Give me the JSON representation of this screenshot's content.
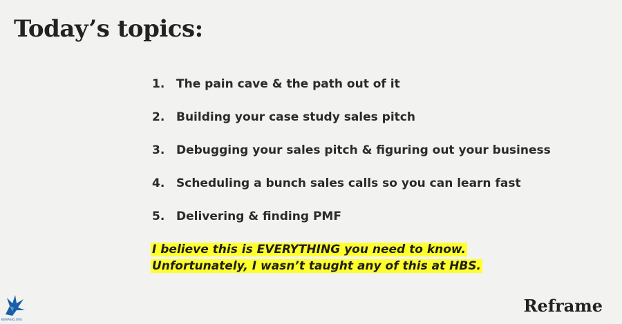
{
  "slide": {
    "title": "Today’s topics:",
    "topics": [
      {
        "number": "1.",
        "text": "The pain cave & the path out of it"
      },
      {
        "number": "2.",
        "text": "Building your case study sales pitch"
      },
      {
        "number": "3.",
        "text": "Debugging your sales pitch & figuring out your business"
      },
      {
        "number": "4.",
        "text": "Scheduling a bunch sales calls so you can learn fast"
      },
      {
        "number": "5.",
        "text": "Delivering & finding PMF"
      }
    ],
    "note": {
      "line1": "I believe this is EVERYTHING you need to know.",
      "line2": "Unfortunately, I wasn’t taught any of this at HBS."
    },
    "brand": "Reframe"
  },
  "watermark": {
    "icon": "bird-logo-icon",
    "text": "KEMASIO.ORG"
  },
  "colors": {
    "background": "#f2f2f0",
    "text": "#222222",
    "highlight": "#ffff2e",
    "watermark": "#1a5fa8"
  }
}
